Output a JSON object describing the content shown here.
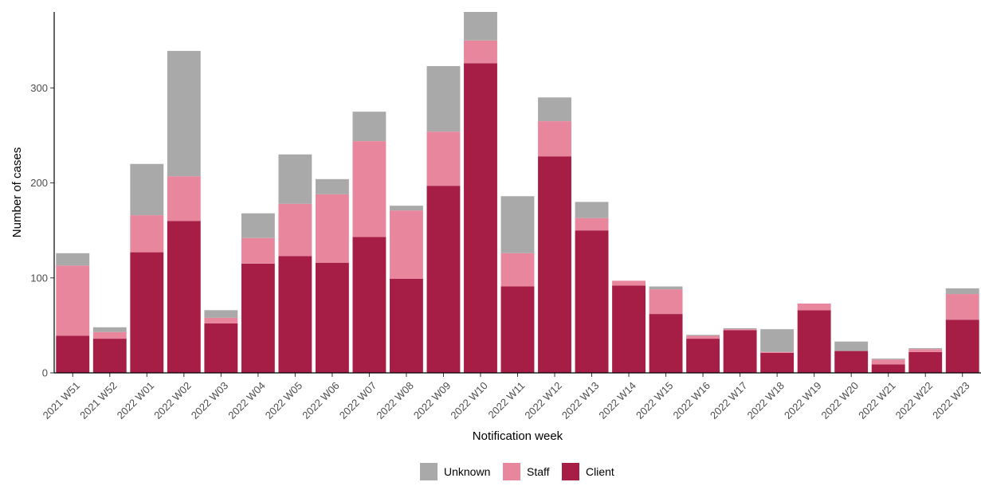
{
  "chart_data": {
    "type": "bar",
    "stacked": true,
    "xlabel": "Notification week",
    "ylabel": "Number of cases",
    "ylim": [
      0,
      380
    ],
    "yticks": [
      0,
      100,
      200,
      300
    ],
    "grid": false,
    "legend_position": "bottom",
    "categories": [
      "2021 W51",
      "2021 W52",
      "2022 W01",
      "2022 W02",
      "2022 W03",
      "2022 W04",
      "2022 W05",
      "2022 W06",
      "2022 W07",
      "2022 W08",
      "2022 W09",
      "2022 W10",
      "2022 W11",
      "2022 W12",
      "2022 W13",
      "2022 W14",
      "2022 W15",
      "2022 W16",
      "2022 W17",
      "2022 W18",
      "2022 W19",
      "2022 W20",
      "2022 W21",
      "2022 W22",
      "2022 W23"
    ],
    "series": [
      {
        "name": "Client",
        "color": "#a61e45",
        "values": [
          39,
          36,
          127,
          160,
          52,
          115,
          123,
          116,
          143,
          99,
          197,
          326,
          91,
          228,
          150,
          92,
          62,
          36,
          45,
          21,
          66,
          23,
          9,
          22,
          56
        ]
      },
      {
        "name": "Staff",
        "color": "#e8869e",
        "values": [
          74,
          7,
          39,
          47,
          6,
          27,
          55,
          72,
          101,
          72,
          57,
          24,
          35,
          37,
          13,
          5,
          26,
          3,
          1,
          1,
          7,
          0,
          5,
          3,
          27
        ]
      },
      {
        "name": "Unknown",
        "color": "#a9a9a9",
        "values": [
          13,
          5,
          54,
          132,
          8,
          26,
          52,
          16,
          31,
          5,
          69,
          30,
          60,
          25,
          17,
          0,
          3,
          1,
          1,
          24,
          0,
          10,
          1,
          1,
          6
        ]
      }
    ],
    "legend_order": [
      "Unknown",
      "Staff",
      "Client"
    ]
  }
}
